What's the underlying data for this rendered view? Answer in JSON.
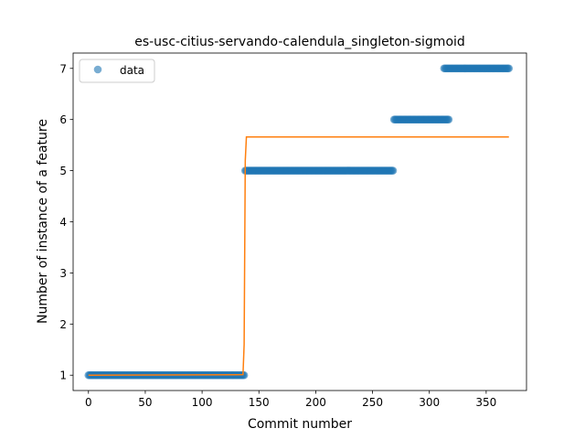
{
  "chart_data": {
    "type": "scatter",
    "title": "es-usc-citius-servando-calendula_singleton-sigmoid",
    "xlabel": "Commit number",
    "ylabel": "Number of instance of a feature",
    "xlim": [
      -13.5,
      385.5
    ],
    "ylim": [
      0.7,
      7.3
    ],
    "xticks": [
      0,
      50,
      100,
      150,
      200,
      250,
      300,
      350
    ],
    "yticks": [
      1,
      2,
      3,
      4,
      5,
      6,
      7
    ],
    "grid": false,
    "legend": {
      "position": "top-left",
      "entries": [
        "data"
      ]
    },
    "colors": {
      "data": "#1f77b4",
      "fit": "#ff7f0e"
    },
    "series": [
      {
        "name": "data",
        "kind": "scatter",
        "segments": [
          {
            "x_start": 0,
            "x_end": 137,
            "y": 1
          },
          {
            "x_start": 138,
            "x_end": 268,
            "y": 5
          },
          {
            "x_start": 269,
            "x_end": 317,
            "y": 6
          },
          {
            "x_start": 313,
            "x_end": 370,
            "y": 7
          }
        ]
      },
      {
        "kind": "line",
        "x": [
          0,
          136,
          137,
          138,
          139,
          370
        ],
        "y": [
          1,
          1.01,
          1.6,
          5.2,
          5.66,
          5.66
        ]
      }
    ]
  }
}
